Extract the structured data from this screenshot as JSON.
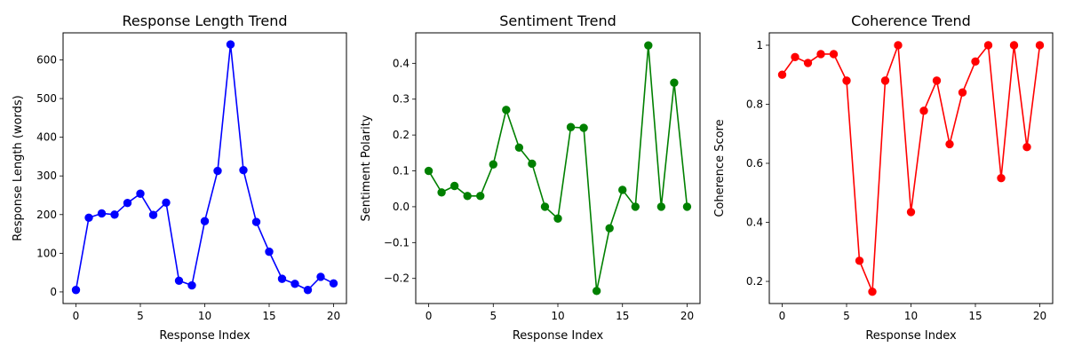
{
  "chart_data": [
    {
      "type": "line",
      "title": "Response Length Trend",
      "xlabel": "Response Index",
      "ylabel": "Response Length (words)",
      "xlim": [
        -1,
        21
      ],
      "ylim": [
        -30,
        670
      ],
      "xticks": [
        0,
        5,
        10,
        15,
        20
      ],
      "yticks": [
        0,
        100,
        200,
        300,
        400,
        500,
        600
      ],
      "grid": false,
      "series": [
        {
          "color": "#0000ff",
          "marker": "circle",
          "x": [
            0,
            1,
            2,
            3,
            4,
            5,
            6,
            7,
            8,
            9,
            10,
            11,
            12,
            13,
            14,
            15,
            16,
            17,
            18,
            19,
            20
          ],
          "y": [
            5,
            192,
            203,
            200,
            230,
            254,
            199,
            231,
            29,
            17,
            183,
            313,
            640,
            315,
            181,
            104,
            34,
            21,
            5,
            39,
            22
          ]
        }
      ]
    },
    {
      "type": "line",
      "title": "Sentiment Trend",
      "xlabel": "Response Index",
      "ylabel": "Sentiment Polarity",
      "xlim": [
        -1,
        21
      ],
      "ylim": [
        -0.27,
        0.485
      ],
      "xticks": [
        0,
        5,
        10,
        15,
        20
      ],
      "yticks": [
        -0.2,
        -0.1,
        0.0,
        0.1,
        0.2,
        0.3,
        0.4
      ],
      "ytick_labels": [
        "−0.2",
        "−0.1",
        "0.0",
        "0.1",
        "0.2",
        "0.3",
        "0.4"
      ],
      "grid": false,
      "series": [
        {
          "color": "#008000",
          "marker": "circle",
          "x": [
            0,
            1,
            2,
            3,
            4,
            5,
            6,
            7,
            8,
            9,
            10,
            11,
            12,
            13,
            14,
            15,
            16,
            17,
            18,
            19,
            20
          ],
          "y": [
            0.1,
            0.04,
            0.058,
            0.03,
            0.03,
            0.118,
            0.27,
            0.165,
            0.12,
            0.0,
            -0.033,
            0.222,
            0.22,
            -0.235,
            -0.06,
            0.047,
            0.0,
            0.45,
            0.0,
            0.346,
            0.0
          ]
        }
      ]
    },
    {
      "type": "line",
      "title": "Coherence Trend",
      "xlabel": "Response Index",
      "ylabel": "Coherence Score",
      "xlim": [
        -1,
        21
      ],
      "ylim": [
        0.125,
        1.042
      ],
      "xticks": [
        0,
        5,
        10,
        15,
        20
      ],
      "yticks": [
        0.2,
        0.4,
        0.6,
        0.8,
        1.0
      ],
      "grid": false,
      "series": [
        {
          "color": "#ff0000",
          "marker": "circle",
          "x": [
            0,
            1,
            2,
            3,
            4,
            5,
            6,
            7,
            8,
            9,
            10,
            11,
            12,
            13,
            14,
            15,
            16,
            17,
            18,
            19,
            20
          ],
          "y": [
            0.9,
            0.96,
            0.94,
            0.97,
            0.97,
            0.88,
            0.27,
            0.165,
            0.88,
            1.0,
            0.435,
            0.778,
            0.88,
            0.665,
            0.84,
            0.945,
            1.0,
            0.55,
            1.0,
            0.655,
            1.0
          ]
        }
      ]
    }
  ]
}
